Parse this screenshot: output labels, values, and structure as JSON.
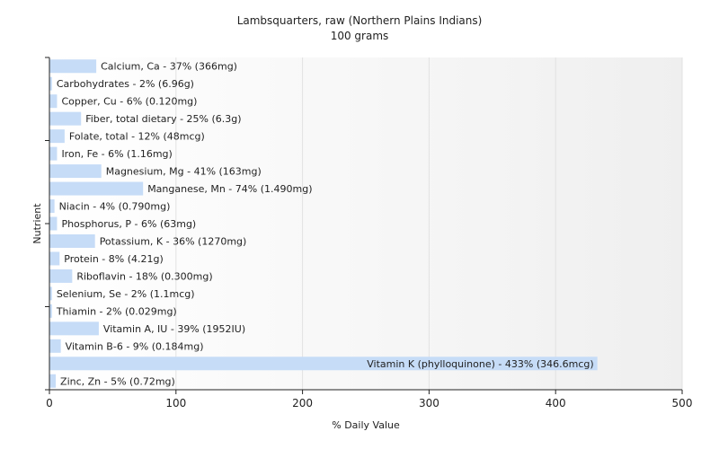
{
  "chart_data": {
    "type": "bar",
    "orientation": "horizontal",
    "title": "Lambsquarters, raw (Northern Plains Indians)",
    "subtitle": "100 grams",
    "xlabel": "% Daily Value",
    "ylabel": "Nutrient",
    "xlim": [
      0,
      500
    ],
    "xticks": [
      "0",
      "100",
      "200",
      "300",
      "400",
      "500"
    ],
    "grid": true,
    "bar_color": "#c6dcf7",
    "categories": [
      "Calcium, Ca",
      "Carbohydrates",
      "Copper, Cu",
      "Fiber, total dietary",
      "Folate, total",
      "Iron, Fe",
      "Magnesium, Mg",
      "Manganese, Mn",
      "Niacin",
      "Phosphorus, P",
      "Potassium, K",
      "Protein",
      "Riboflavin",
      "Selenium, Se",
      "Thiamin",
      "Vitamin A, IU",
      "Vitamin B-6",
      "Vitamin K (phylloquinone)",
      "Zinc, Zn"
    ],
    "values": [
      37,
      2,
      6,
      25,
      12,
      6,
      41,
      74,
      4,
      6,
      36,
      8,
      18,
      2,
      2,
      39,
      9,
      433,
      5
    ],
    "labels": [
      "Calcium, Ca - 37% (366mg)",
      "Carbohydrates - 2% (6.96g)",
      "Copper, Cu - 6% (0.120mg)",
      "Fiber, total dietary - 25% (6.3g)",
      "Folate, total - 12% (48mcg)",
      "Iron, Fe - 6% (1.16mg)",
      "Magnesium, Mg - 41% (163mg)",
      "Manganese, Mn - 74% (1.490mg)",
      "Niacin - 4% (0.790mg)",
      "Phosphorus, P - 6% (63mg)",
      "Potassium, K - 36% (1270mg)",
      "Protein - 8% (4.21g)",
      "Riboflavin - 18% (0.300mg)",
      "Selenium, Se - 2% (1.1mcg)",
      "Thiamin - 2% (0.029mg)",
      "Vitamin A, IU - 39% (1952IU)",
      "Vitamin B-6 - 9% (0.184mg)",
      "Vitamin K (phylloquinone) - 433% (346.6mcg)",
      "Zinc, Zn - 5% (0.72mg)"
    ]
  }
}
